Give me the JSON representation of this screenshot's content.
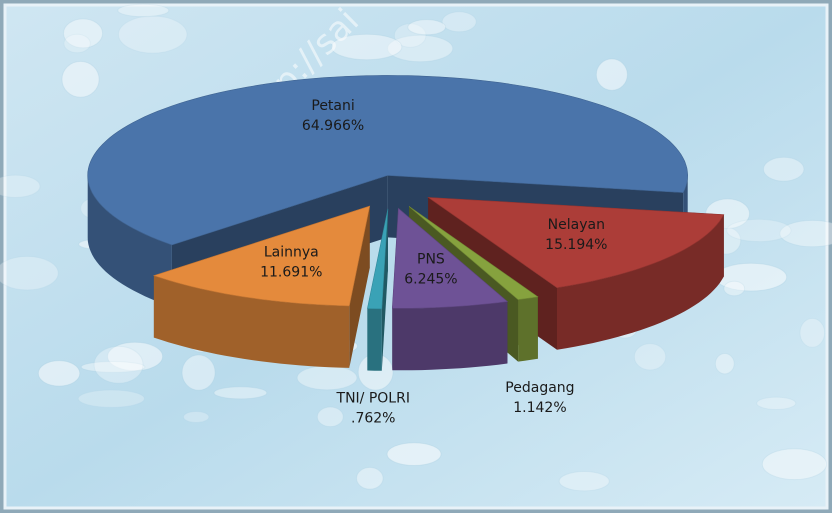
{
  "chart_data": {
    "type": "pie",
    "watermark": "http://sai",
    "categories": [
      "Petani",
      "Nelayan",
      "Pedagang",
      "PNS",
      "TNI/ POLRI",
      "Lainnya"
    ],
    "values": [
      64.966,
      15.194,
      1.142,
      6.245,
      0.762,
      11.691
    ],
    "value_labels": [
      "64.966%",
      "15.194%",
      "1.142%",
      "6.245%",
      ".762%",
      "11.691%"
    ],
    "colors": [
      "#4a74aa",
      "#ac3d38",
      "#86a23e",
      "#6e5296",
      "#3aa2b6",
      "#e48a3c"
    ],
    "exploded": true,
    "three_d": true
  }
}
